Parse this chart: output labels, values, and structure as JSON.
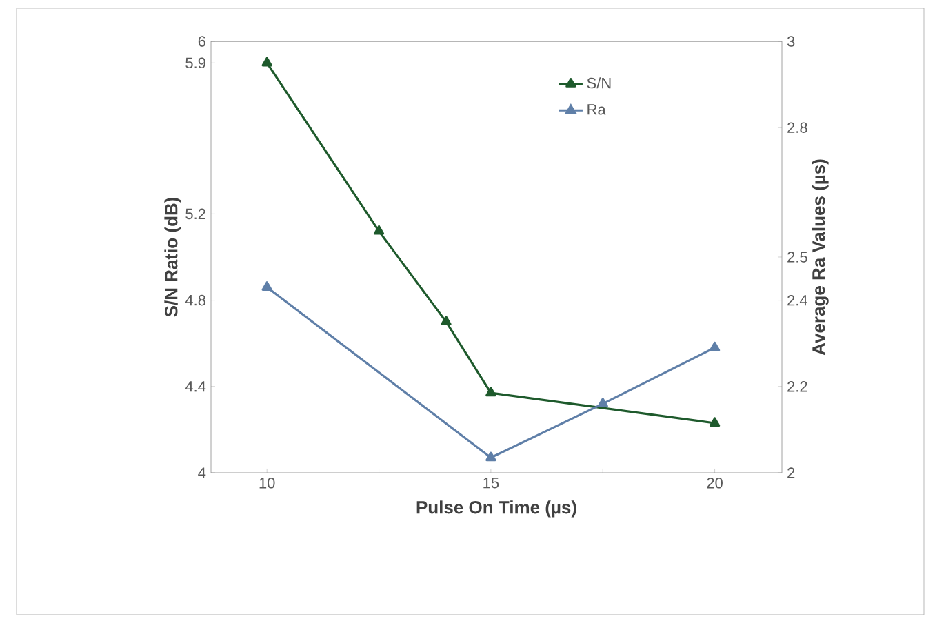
{
  "chart_data": {
    "type": "line",
    "series": [
      {
        "name": "S/N",
        "color": "#1e5a2c",
        "x": [
          10,
          12.5,
          14,
          15,
          20
        ],
        "values": [
          5.9,
          5.12,
          4.7,
          4.37,
          4.23
        ]
      },
      {
        "name": "Ra",
        "color": "#5f7fa8",
        "axis": "y2",
        "x": [
          10,
          15,
          17.5,
          20
        ],
        "values": [
          2.43,
          2.035,
          2.16,
          2.29
        ]
      }
    ],
    "xlabel": "Pulse On Time (µs)",
    "ylabel": "S/N Ratio (dB)",
    "y2label": "Average Ra Values (µs)",
    "xlim": [
      8.75,
      21.5
    ],
    "xticks": [
      10,
      {
        "value": 12.5,
        "label": null
      },
      15,
      {
        "value": 17.5,
        "label": null
      },
      20
    ],
    "ylim": [
      4,
      6
    ],
    "yticks": [
      4,
      4.4,
      4.8,
      5.2,
      5.9,
      6
    ],
    "y2lim": [
      2,
      3
    ],
    "y2ticks": [
      2,
      2.2,
      2.4,
      2.5,
      2.8,
      3
    ],
    "marker": "triangle",
    "legend": "top right",
    "grid": false
  }
}
